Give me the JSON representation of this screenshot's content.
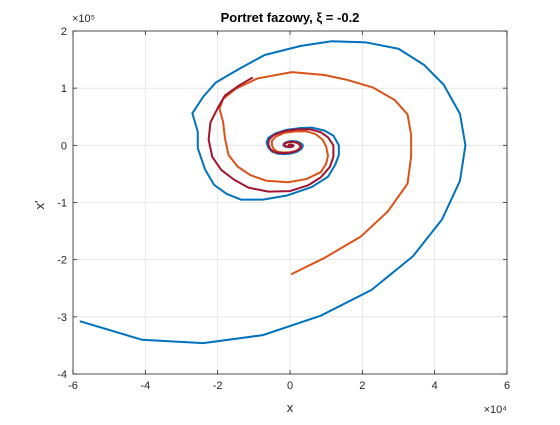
{
  "chart_data": {
    "type": "line",
    "title": "Portret fazowy, ξ = -0.2",
    "xlabel": "x",
    "ylabel": "x'",
    "x_exponent_label": "×10⁴",
    "y_exponent_label": "×10⁵",
    "xlim": [
      -60000,
      60000
    ],
    "ylim": [
      -400000,
      200000
    ],
    "xticks": [
      -60000,
      -40000,
      -20000,
      0,
      20000,
      40000,
      60000
    ],
    "xtick_labels": [
      "-6",
      "-4",
      "-2",
      "0",
      "2",
      "4",
      "6"
    ],
    "yticks": [
      -400000,
      -300000,
      -200000,
      -100000,
      0,
      100000,
      200000
    ],
    "ytick_labels": [
      "-4",
      "-3",
      "-2",
      "-1",
      "0",
      "1",
      "2"
    ],
    "grid": true,
    "series": [
      {
        "color": "#0072BD",
        "points": [
          [
            -57900,
            -308000
          ],
          [
            -41000,
            -340000
          ],
          [
            -24000,
            -346000
          ],
          [
            -7500,
            -332000
          ],
          [
            8500,
            -298000
          ],
          [
            22500,
            -253000
          ],
          [
            34000,
            -194000
          ],
          [
            42000,
            -130000
          ],
          [
            47000,
            -62000
          ],
          [
            48500,
            0
          ],
          [
            47000,
            55000
          ],
          [
            42500,
            106000
          ],
          [
            37000,
            141000
          ],
          [
            30000,
            169000
          ],
          [
            21000,
            180000
          ],
          [
            11500,
            182000
          ],
          [
            3000,
            174000
          ],
          [
            -7000,
            158000
          ],
          [
            -14000,
            134000
          ],
          [
            -20500,
            110000
          ],
          [
            -24000,
            85000
          ],
          [
            -27000,
            56000
          ],
          [
            -25500,
            24000
          ],
          [
            -25500,
            -5000
          ],
          [
            -23500,
            -42000
          ],
          [
            -21000,
            -69000
          ],
          [
            -17500,
            -85000
          ],
          [
            -13500,
            -95000
          ],
          [
            -7500,
            -95000
          ],
          [
            -1000,
            -88000
          ],
          [
            6000,
            -73000
          ],
          [
            10500,
            -55000
          ],
          [
            12500,
            -34000
          ],
          [
            13500,
            -17000
          ],
          [
            13500,
            0
          ],
          [
            12000,
            17000
          ],
          [
            9500,
            26000
          ],
          [
            6000,
            31000
          ],
          [
            2500,
            30000
          ],
          [
            -1000,
            27000
          ],
          [
            -4000,
            21000
          ],
          [
            -6000,
            13000
          ],
          [
            -6500,
            5000
          ],
          [
            -6000,
            -4000
          ],
          [
            -5000,
            -11000
          ],
          [
            -3500,
            -14500
          ],
          [
            -1500,
            -15500
          ],
          [
            500,
            -14000
          ],
          [
            2000,
            -11000
          ],
          [
            3000,
            -7000
          ],
          [
            3500,
            -3000
          ],
          [
            3500,
            1000
          ],
          [
            2800,
            4500
          ],
          [
            1700,
            7000
          ],
          [
            500,
            7500
          ],
          [
            -600,
            6500
          ],
          [
            -1400,
            4500
          ],
          [
            -1800,
            2000
          ],
          [
            -1800,
            -400
          ],
          [
            -1300,
            -2300
          ],
          [
            -700,
            -3200
          ],
          [
            0,
            -3200
          ],
          [
            600,
            -2500
          ],
          [
            900,
            -1400
          ],
          [
            1000,
            -200
          ],
          [
            800,
            700
          ],
          [
            400,
            1200
          ],
          [
            0,
            1200
          ],
          [
            -300,
            900
          ],
          [
            -400,
            400
          ],
          [
            -300,
            -100
          ],
          [
            0,
            -300
          ],
          [
            150,
            -200
          ],
          [
            200,
            0
          ]
        ]
      },
      {
        "color": "#D95319",
        "points": [
          [
            500,
            -225000
          ],
          [
            9500,
            -197000
          ],
          [
            19500,
            -160000
          ],
          [
            27000,
            -116000
          ],
          [
            32500,
            -67000
          ],
          [
            33500,
            -19000
          ],
          [
            33500,
            18000
          ],
          [
            32500,
            54000
          ],
          [
            29000,
            79000
          ],
          [
            23000,
            101000
          ],
          [
            15500,
            115000
          ],
          [
            9500,
            123000
          ],
          [
            500,
            128000
          ],
          [
            -9000,
            117000
          ],
          [
            -15000,
            99000
          ],
          [
            -18500,
            81000
          ],
          [
            -19500,
            64000
          ],
          [
            -18500,
            41000
          ],
          [
            -18000,
            13000
          ],
          [
            -17000,
            -17000
          ],
          [
            -14500,
            -37000
          ],
          [
            -11000,
            -52000
          ],
          [
            -6500,
            -62000
          ],
          [
            -500,
            -64500
          ],
          [
            4500,
            -59000
          ],
          [
            8500,
            -47000
          ],
          [
            10000,
            -32000
          ],
          [
            10500,
            -18000
          ],
          [
            10000,
            -2000
          ],
          [
            9000,
            10000
          ],
          [
            7000,
            20000
          ],
          [
            4500,
            24500
          ],
          [
            1500,
            24500
          ],
          [
            -1500,
            22000
          ],
          [
            -4000,
            15000
          ],
          [
            -5000,
            8000
          ],
          [
            -5000,
            0
          ],
          [
            -4500,
            -6500
          ],
          [
            -3500,
            -11000
          ],
          [
            -2000,
            -12500
          ],
          [
            0,
            -12000
          ],
          [
            1500,
            -10000
          ],
          [
            2500,
            -6500
          ],
          [
            2800,
            -2500
          ],
          [
            2600,
            1500
          ],
          [
            1800,
            4500
          ],
          [
            800,
            5800
          ],
          [
            -300,
            5500
          ],
          [
            -1200,
            4000
          ],
          [
            -1600,
            1800
          ],
          [
            -1500,
            -400
          ],
          [
            -1000,
            -2000
          ],
          [
            -300,
            -2800
          ],
          [
            300,
            -2600
          ],
          [
            700,
            -1700
          ],
          [
            800,
            -600
          ],
          [
            600,
            400
          ],
          [
            200,
            900
          ],
          [
            -200,
            800
          ],
          [
            -400,
            300
          ],
          [
            -300,
            -200
          ],
          [
            0,
            -300
          ]
        ]
      },
      {
        "color": "#A2142F",
        "points": [
          [
            -10500,
            118000
          ],
          [
            -14000,
            105000
          ],
          [
            -18000,
            87000
          ],
          [
            -20000,
            65000
          ],
          [
            -22000,
            40000
          ],
          [
            -22500,
            10000
          ],
          [
            -21500,
            -20000
          ],
          [
            -19000,
            -43000
          ],
          [
            -15500,
            -60000
          ],
          [
            -11500,
            -74000
          ],
          [
            -6000,
            -81000
          ],
          [
            0,
            -80000
          ],
          [
            5000,
            -70000
          ],
          [
            8500,
            -56000
          ],
          [
            11000,
            -38000
          ],
          [
            12000,
            -20000
          ],
          [
            12000,
            0
          ],
          [
            10500,
            14000
          ],
          [
            8500,
            23000
          ],
          [
            5500,
            28000
          ],
          [
            2000,
            28000
          ],
          [
            -1500,
            25000
          ],
          [
            -4500,
            18000
          ],
          [
            -5800,
            10000
          ],
          [
            -6000,
            2000
          ],
          [
            -5500,
            -6000
          ],
          [
            -4500,
            -11000
          ],
          [
            -3000,
            -13500
          ],
          [
            -1000,
            -13500
          ],
          [
            800,
            -12000
          ],
          [
            2000,
            -9000
          ],
          [
            2800,
            -5500
          ],
          [
            3000,
            -2000
          ],
          [
            2700,
            2000
          ],
          [
            2000,
            4800
          ],
          [
            1000,
            6200
          ],
          [
            0,
            6000
          ],
          [
            -1000,
            4800
          ],
          [
            -1500,
            3000
          ],
          [
            -1600,
            800
          ],
          [
            -1300,
            -1200
          ],
          [
            -800,
            -2500
          ],
          [
            -200,
            -3000
          ],
          [
            400,
            -2600
          ],
          [
            800,
            -1700
          ],
          [
            900,
            -600
          ],
          [
            700,
            400
          ],
          [
            300,
            1000
          ],
          [
            -100,
            1000
          ],
          [
            -300,
            600
          ],
          [
            -350,
            100
          ],
          [
            -200,
            -200
          ],
          [
            0,
            -250
          ],
          [
            100,
            0
          ]
        ]
      }
    ]
  }
}
